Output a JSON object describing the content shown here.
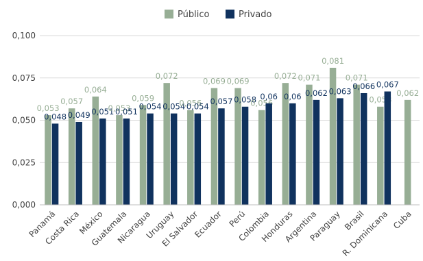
{
  "chart_data": {
    "type": "bar",
    "categories": [
      "Panamá",
      "Costa Rica",
      "México",
      "Guatemala",
      "Nicaragua",
      "Uruguay",
      "El Salvador",
      "Ecuador",
      "Perú",
      "Colombia",
      "Honduras",
      "Argentina",
      "Paraguay",
      "Brasil",
      "R. Dominicana",
      "Cuba"
    ],
    "series": [
      {
        "name": "Público",
        "color": "#97ae95",
        "values": [
          0.053,
          0.057,
          0.064,
          0.053,
          0.059,
          0.072,
          0.056,
          0.069,
          0.069,
          0.056,
          0.072,
          0.071,
          0.081,
          0.071,
          0.058,
          0.062
        ],
        "labels": [
          "0,053",
          "0,057",
          "0,064",
          "0,053",
          "0,059",
          "0,072",
          "0,056",
          "0,069",
          "0,069",
          "0,056",
          "0,072",
          "0,071",
          "0,081",
          "0,071",
          "0,058",
          "0,062"
        ]
      },
      {
        "name": "Privado",
        "color": "#10325e",
        "values": [
          0.048,
          0.049,
          0.051,
          0.051,
          0.054,
          0.054,
          0.054,
          0.057,
          0.058,
          0.06,
          0.06,
          0.062,
          0.063,
          0.066,
          0.067,
          null
        ],
        "labels": [
          "0,048",
          "0,049",
          "0,051",
          "0,051",
          "0,054",
          "0,054",
          "0,054",
          "0,057",
          "0,058",
          "0,06",
          "0,06",
          "0,062",
          "0,063",
          "0,066",
          "0,067",
          ""
        ]
      }
    ],
    "ylim": [
      0,
      0.1
    ],
    "yticks": [
      0,
      0.025,
      0.05,
      0.075,
      0.1
    ],
    "ytick_labels": [
      "0,000",
      "0,025",
      "0,050",
      "0,075",
      "0,100"
    ],
    "grid": true,
    "legend_position": "top-center",
    "title": "",
    "xlabel": "",
    "ylabel": ""
  }
}
